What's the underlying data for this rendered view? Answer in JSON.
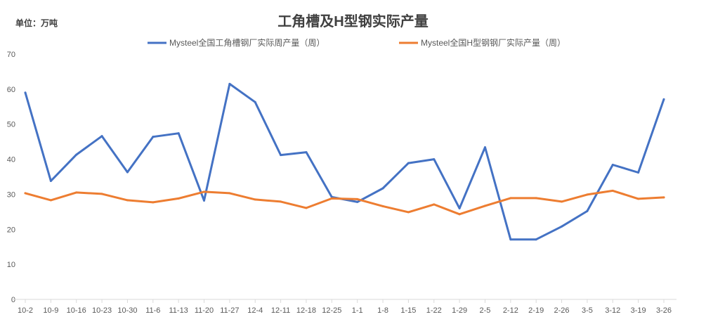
{
  "chart_data": {
    "type": "line",
    "title": "工角槽及H型钢实际产量",
    "unit_label": "单位：万吨",
    "categories": [
      "10-2",
      "10-9",
      "10-16",
      "10-23",
      "10-30",
      "11-6",
      "11-13",
      "11-20",
      "11-27",
      "12-4",
      "12-11",
      "12-18",
      "12-25",
      "1-1",
      "1-8",
      "1-15",
      "1-22",
      "1-29",
      "2-5",
      "2-12",
      "2-19",
      "2-26",
      "3-5",
      "3-12",
      "3-19",
      "3-26"
    ],
    "ylim": [
      0,
      70
    ],
    "yticks": [
      0,
      10,
      20,
      30,
      40,
      50,
      60,
      70
    ],
    "grid": false,
    "legend_position": "top",
    "series": [
      {
        "name": "Mysteel全国工角槽钢厂实际周产量（周）",
        "color": "#4472C4",
        "values": [
          59,
          33.8,
          41.3,
          46.6,
          36.3,
          46.4,
          47.4,
          28.2,
          61.5,
          56.3,
          41.2,
          42,
          29.2,
          27.8,
          31.7,
          38.9,
          40,
          26,
          43.4,
          17.1,
          17.1,
          20.8,
          25.2,
          38.4,
          36.2,
          57.1
        ]
      },
      {
        "name": "Mysteel全国H型钢钢厂实际产量（周）",
        "color": "#ED7D31",
        "values": [
          30.3,
          28.3,
          30.5,
          30.1,
          28.3,
          27.7,
          28.8,
          30.7,
          30.3,
          28.5,
          27.9,
          26.1,
          28.8,
          28.6,
          26.6,
          24.9,
          27.1,
          24.3,
          26.7,
          28.9,
          28.9,
          27.9,
          29.9,
          31,
          28.7,
          29.1
        ]
      }
    ]
  }
}
